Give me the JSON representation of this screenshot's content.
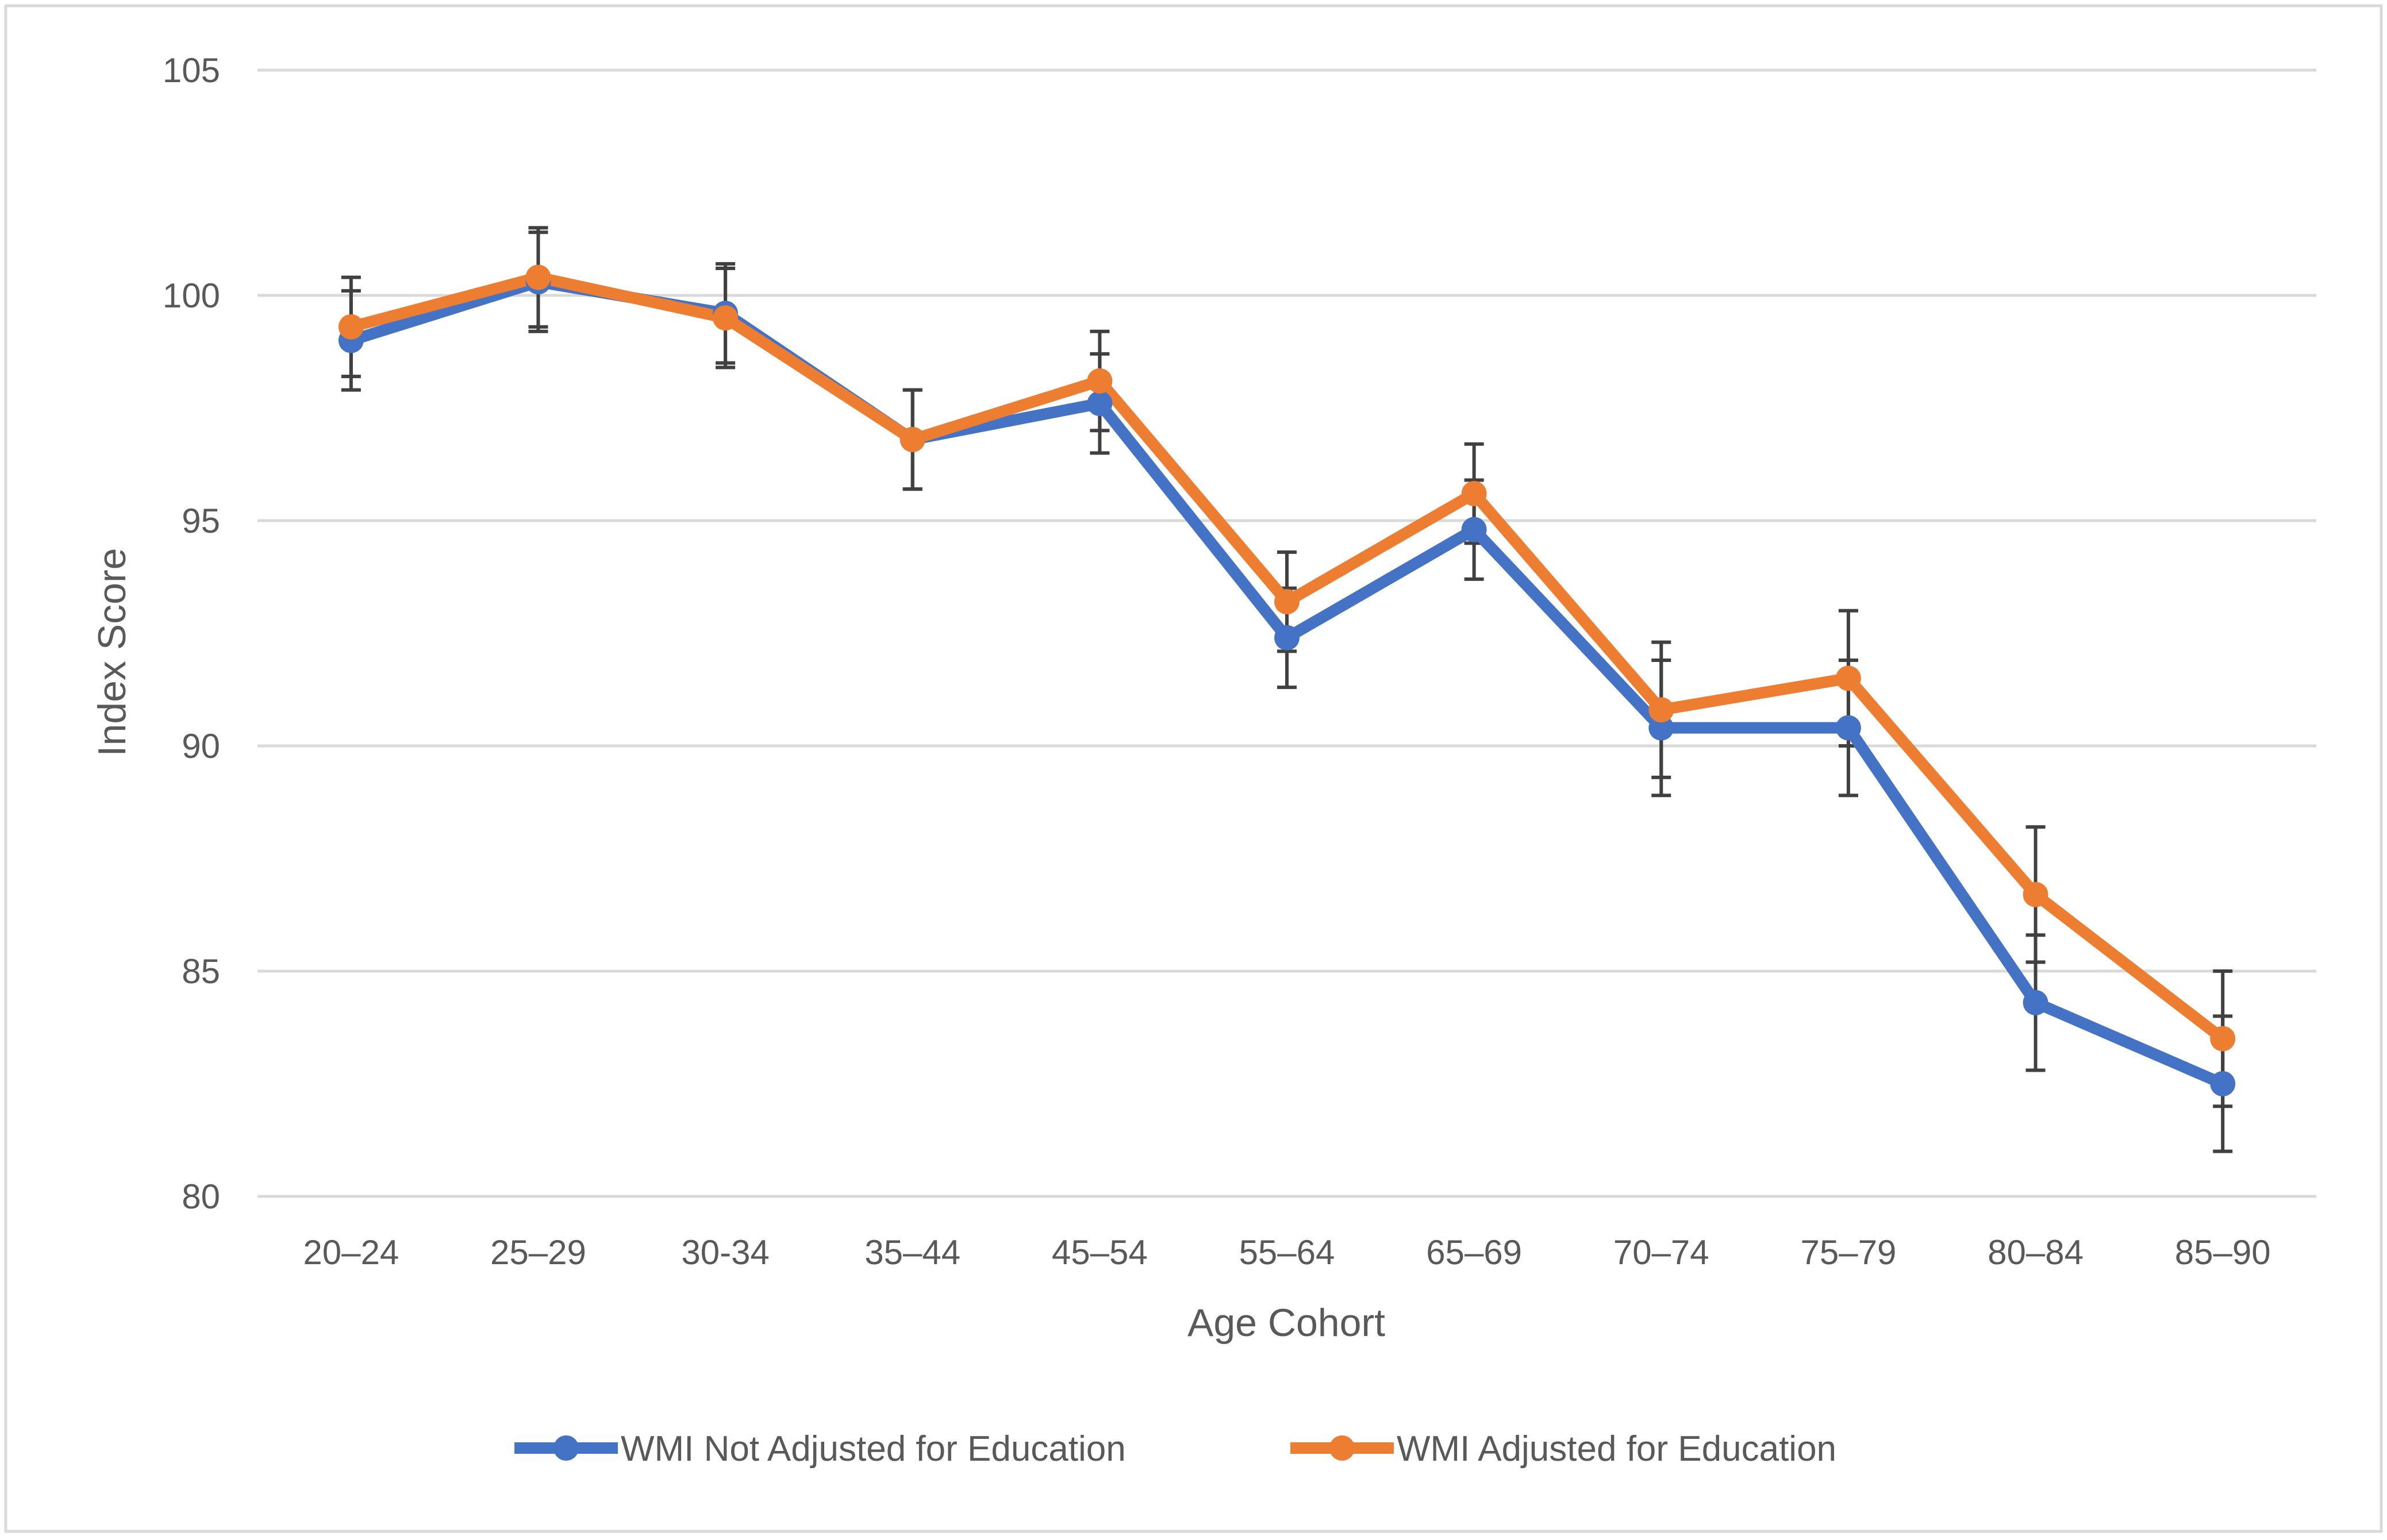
{
  "chart_data": {
    "type": "line",
    "title": "",
    "xlabel": "Age Cohort",
    "ylabel": "Index Score",
    "ylim": [
      80,
      105
    ],
    "yticks": [
      80,
      85,
      90,
      95,
      100,
      105
    ],
    "grid": true,
    "legend_position": "bottom",
    "categories": [
      "20–24",
      "25–29",
      "30-34",
      "35–44",
      "45–54",
      "55–64",
      "65–69",
      "70–74",
      "75–79",
      "80–84",
      "85–90"
    ],
    "series": [
      {
        "name": "WMI Not Adjusted for Education",
        "color": "#4472C4",
        "values": [
          99.0,
          100.3,
          99.6,
          96.8,
          97.6,
          92.4,
          94.8,
          90.4,
          90.4,
          84.3,
          82.5
        ],
        "error": [
          1.1,
          1.1,
          1.1,
          1.1,
          1.1,
          1.1,
          1.1,
          1.5,
          1.5,
          1.5,
          1.5
        ]
      },
      {
        "name": "WMI Adjusted for Education",
        "color": "#ED7D31",
        "values": [
          99.3,
          100.4,
          99.5,
          96.8,
          98.1,
          93.2,
          95.6,
          90.8,
          91.5,
          86.7,
          83.5
        ],
        "error": [
          1.1,
          1.1,
          1.1,
          1.1,
          1.1,
          1.1,
          1.1,
          1.5,
          1.5,
          1.5,
          1.5
        ]
      }
    ]
  },
  "colors": {
    "gridline": "#D9D9D9",
    "error_bar": "#404040",
    "frame_border": "#D9D9D9",
    "text": "#595959"
  }
}
